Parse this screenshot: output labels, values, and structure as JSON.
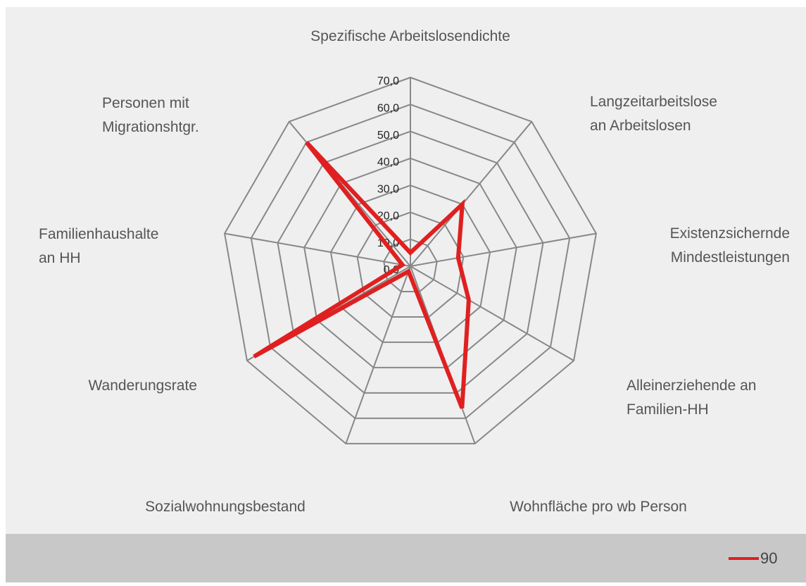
{
  "chart_data": {
    "type": "radar",
    "categories": [
      [
        "Spezifische Arbeitslosendichte"
      ],
      [
        "Langzeitarbeitslose",
        "an Arbeitslosen"
      ],
      [
        "Existenzsichernde",
        "Mindestleistungen"
      ],
      [
        "Alleinerziehende an",
        "Familien-HH"
      ],
      [
        "Wohnfläche pro wb Person"
      ],
      [
        "Sozialwohnungsbestand"
      ],
      [
        "Wanderungsrate"
      ],
      [
        "Familienhaushalte",
        "an HH"
      ],
      [
        "Personen mit",
        "Migrationshtgr."
      ]
    ],
    "series": [
      {
        "name": "90",
        "color": "#e02020",
        "values": [
          5,
          30,
          18,
          25,
          56,
          2,
          67,
          3,
          60
        ]
      }
    ],
    "ylim": [
      0,
      70
    ],
    "yticks": [
      {
        "value": 0,
        "label": "0,0"
      },
      {
        "value": 10,
        "label": "10,0"
      },
      {
        "value": 20,
        "label": "20,0"
      },
      {
        "value": 30,
        "label": "30,0"
      },
      {
        "value": 40,
        "label": "40,0"
      },
      {
        "value": 50,
        "label": "50,0"
      },
      {
        "value": 60,
        "label": "60,0"
      },
      {
        "value": 70,
        "label": "70,0"
      }
    ],
    "grid": true,
    "legend": "bottom-right"
  }
}
